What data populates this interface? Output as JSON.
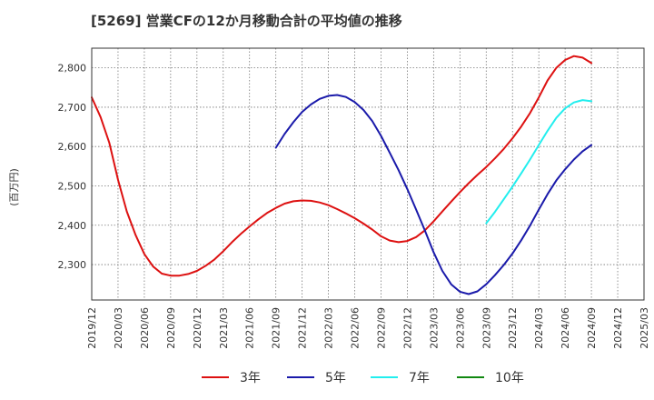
{
  "chart_data": {
    "type": "line",
    "title": "[5269]  営業CFの12か月移動合計の平均値の推移",
    "ylabel": "(百万円)",
    "xlabel": "",
    "ylim": [
      2210,
      2850
    ],
    "yticks": [
      2300,
      2400,
      2500,
      2600,
      2700,
      2800
    ],
    "yticklabels": [
      "2,300",
      "2,400",
      "2,500",
      "2,600",
      "2,700",
      "2,800"
    ],
    "xlim": [
      "2019/12",
      "2025/03"
    ],
    "xticks": [
      "2019/12",
      "2020/03",
      "2020/06",
      "2020/09",
      "2020/12",
      "2021/03",
      "2021/06",
      "2021/09",
      "2021/12",
      "2022/03",
      "2022/06",
      "2022/09",
      "2022/12",
      "2023/03",
      "2023/06",
      "2023/09",
      "2023/12",
      "2024/03",
      "2024/06",
      "2024/09",
      "2024/12",
      "2025/03"
    ],
    "grid": true,
    "legend_position": "bottom",
    "series": [
      {
        "name": "3年",
        "color": "#dd1111",
        "x": [
          "2019/12",
          "2020/01",
          "2020/02",
          "2020/03",
          "2020/04",
          "2020/05",
          "2020/06",
          "2020/07",
          "2020/08",
          "2020/09",
          "2020/10",
          "2020/11",
          "2020/12",
          "2021/01",
          "2021/02",
          "2021/03",
          "2021/04",
          "2021/05",
          "2021/06",
          "2021/07",
          "2021/08",
          "2021/09",
          "2021/10",
          "2021/11",
          "2021/12",
          "2022/01",
          "2022/02",
          "2022/03",
          "2022/04",
          "2022/05",
          "2022/06",
          "2022/07",
          "2022/08",
          "2022/09",
          "2022/10",
          "2022/11",
          "2022/12",
          "2023/01",
          "2023/02",
          "2023/03",
          "2023/04",
          "2023/05",
          "2023/06",
          "2023/07",
          "2023/08",
          "2023/09",
          "2023/10",
          "2023/11",
          "2023/12",
          "2024/01",
          "2024/02",
          "2024/03",
          "2024/04",
          "2024/05",
          "2024/06",
          "2024/07",
          "2024/08",
          "2024/09"
        ],
        "values": [
          2725,
          2675,
          2610,
          2515,
          2435,
          2375,
          2327,
          2295,
          2277,
          2272,
          2272,
          2276,
          2284,
          2297,
          2313,
          2334,
          2357,
          2378,
          2397,
          2415,
          2431,
          2444,
          2455,
          2461,
          2463,
          2462,
          2458,
          2451,
          2441,
          2430,
          2418,
          2404,
          2389,
          2372,
          2361,
          2357,
          2360,
          2370,
          2387,
          2410,
          2435,
          2460,
          2484,
          2507,
          2528,
          2548,
          2570,
          2594,
          2621,
          2651,
          2685,
          2725,
          2768,
          2800,
          2820,
          2830,
          2826,
          2812
        ]
      },
      {
        "name": "5年",
        "color": "#1a1aaa",
        "x": [
          "2021/09",
          "2021/10",
          "2021/11",
          "2021/12",
          "2022/01",
          "2022/02",
          "2022/03",
          "2022/04",
          "2022/05",
          "2022/06",
          "2022/07",
          "2022/08",
          "2022/09",
          "2022/10",
          "2022/11",
          "2022/12",
          "2023/01",
          "2023/02",
          "2023/03",
          "2023/04",
          "2023/05",
          "2023/06",
          "2023/07",
          "2023/08",
          "2023/09",
          "2023/10",
          "2023/11",
          "2023/12",
          "2024/01",
          "2024/02",
          "2024/03",
          "2024/04",
          "2024/05",
          "2024/06",
          "2024/07",
          "2024/08",
          "2024/09"
        ],
        "values": [
          2597,
          2632,
          2662,
          2688,
          2707,
          2721,
          2729,
          2731,
          2726,
          2713,
          2693,
          2665,
          2627,
          2584,
          2540,
          2492,
          2440,
          2387,
          2331,
          2284,
          2250,
          2231,
          2225,
          2232,
          2250,
          2273,
          2299,
          2328,
          2362,
          2399,
          2440,
          2479,
          2514,
          2542,
          2567,
          2588,
          2604
        ]
      },
      {
        "name": "7年",
        "color": "#22eeee",
        "x": [
          "2023/09",
          "2023/10",
          "2023/11",
          "2023/12",
          "2024/01",
          "2024/02",
          "2024/03",
          "2024/04",
          "2024/05",
          "2024/06",
          "2024/07",
          "2024/08",
          "2024/09"
        ],
        "values": [
          2405,
          2434,
          2466,
          2498,
          2532,
          2567,
          2604,
          2640,
          2673,
          2697,
          2712,
          2718,
          2715
        ]
      },
      {
        "name": "10年",
        "color": "#118811",
        "x": [],
        "values": []
      }
    ]
  }
}
